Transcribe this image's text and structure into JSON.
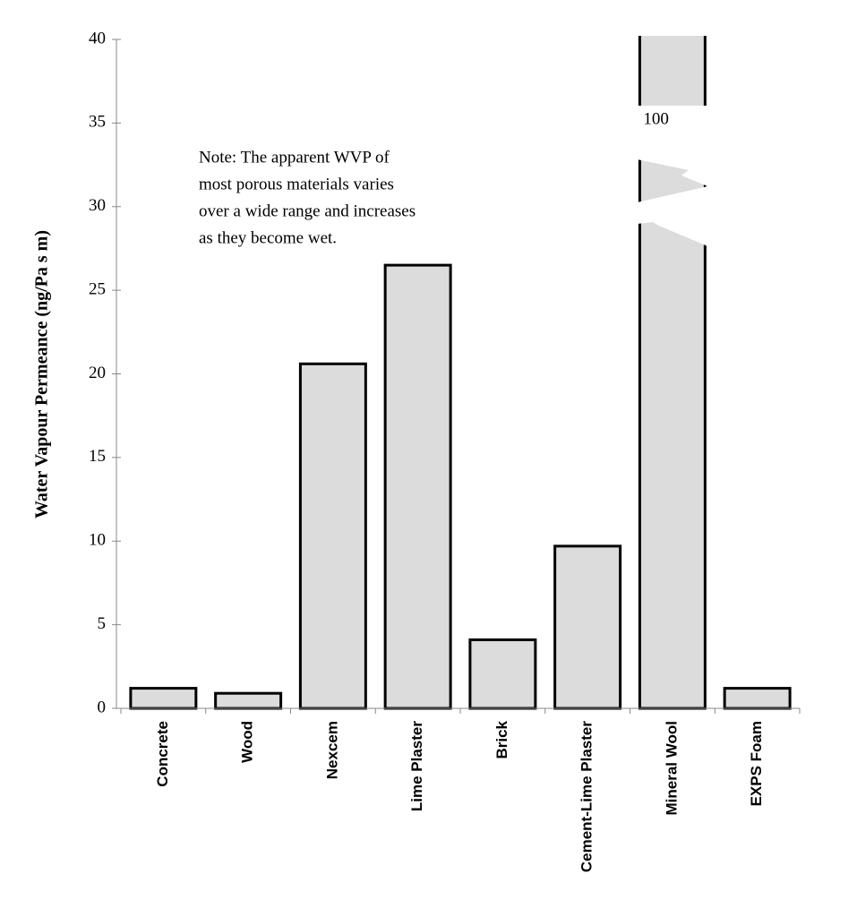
{
  "chart_data": {
    "type": "bar",
    "y_label": "Water Vapour Permeance (ng/Pa s m)",
    "annotation": [
      "Note: The apparent WVP of",
      "most porous materials varies",
      "over a wide range and increases",
      "as they become wet."
    ],
    "categories": [
      "Concrete",
      "Wood",
      "Nexcem",
      "Lime Plaster",
      "Brick",
      "Cement-Lime Plaster",
      "Mineral Wool",
      "EXPS Foam"
    ],
    "values": [
      1.2,
      0.9,
      20.6,
      26.5,
      4.1,
      9.7,
      100,
      1.2
    ],
    "value_labels": [
      null,
      null,
      null,
      null,
      null,
      null,
      "100",
      null
    ],
    "color": "#dcdcdc",
    "ylim": [
      0,
      40
    ],
    "yticks": [
      0,
      5,
      10,
      15,
      20,
      25,
      30,
      35,
      40
    ],
    "grid": false
  }
}
